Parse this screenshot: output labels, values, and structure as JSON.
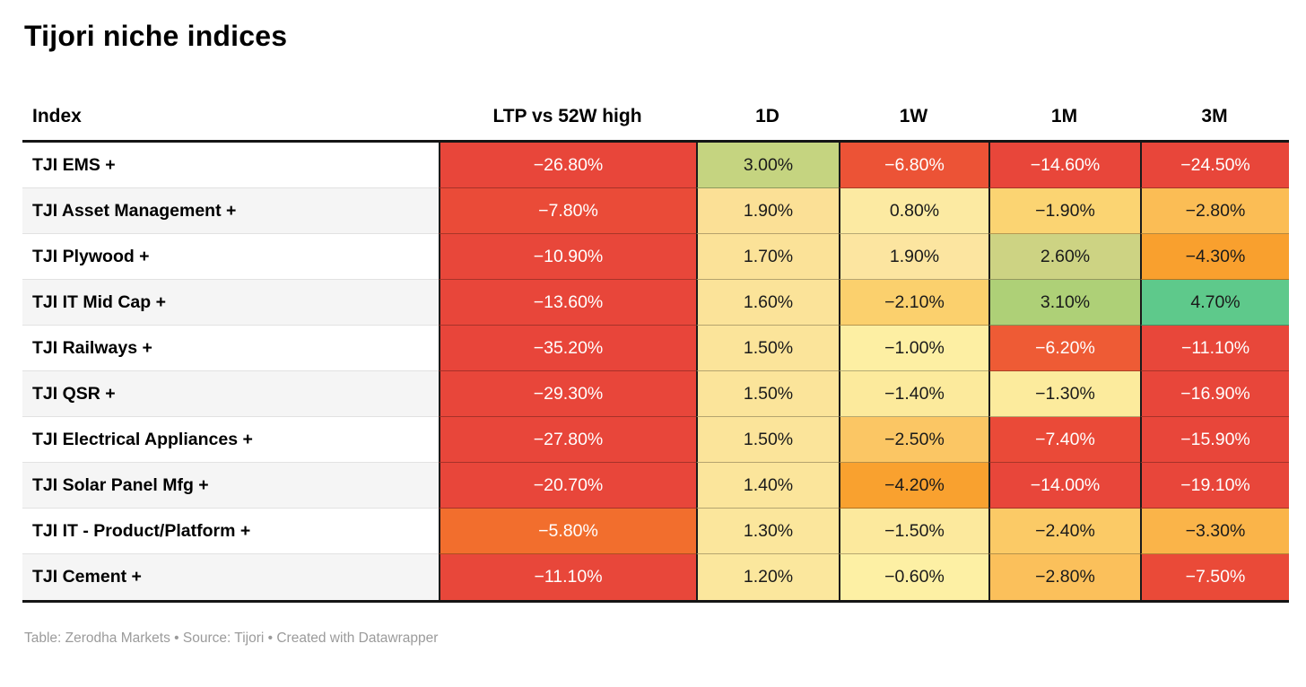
{
  "title": "Tijori niche indices",
  "footer": {
    "text": "Table: Zerodha Markets • Source: Tijori • Created with Datawrapper"
  },
  "colors": {
    "border_dark": "#1a1a1a",
    "row_alt_background": "#f5f5f5",
    "footer_text": "#9b9b9b",
    "negative_deep_red": "#e8463a",
    "positive_green": "#5ec98b"
  },
  "table": {
    "columns": [
      {
        "key": "index",
        "label": "Index"
      },
      {
        "key": "ltp",
        "label": "LTP vs 52W high"
      },
      {
        "key": "d1",
        "label": "1D"
      },
      {
        "key": "w1",
        "label": "1W"
      },
      {
        "key": "m1",
        "label": "1M"
      },
      {
        "key": "m3",
        "label": "3M"
      }
    ],
    "rows": [
      {
        "name": "TJI EMS +",
        "cells": [
          {
            "col": "ltp",
            "text": "−26.80%",
            "bg": "#e8463a",
            "fg": "#ffffff"
          },
          {
            "col": "d1",
            "text": "3.00%",
            "bg": "#c5d480",
            "fg": "#1a1a1a"
          },
          {
            "col": "w1",
            "text": "−6.80%",
            "bg": "#ec5336",
            "fg": "#ffffff"
          },
          {
            "col": "m1",
            "text": "−14.60%",
            "bg": "#e8463a",
            "fg": "#ffffff"
          },
          {
            "col": "m3",
            "text": "−24.50%",
            "bg": "#e8463a",
            "fg": "#ffffff"
          }
        ]
      },
      {
        "name": "TJI Asset Management +",
        "cells": [
          {
            "col": "ltp",
            "text": "−7.80%",
            "bg": "#ea4b38",
            "fg": "#ffffff"
          },
          {
            "col": "d1",
            "text": "1.90%",
            "bg": "#fbe096",
            "fg": "#1a1a1a"
          },
          {
            "col": "w1",
            "text": "0.80%",
            "bg": "#fceaa2",
            "fg": "#1a1a1a"
          },
          {
            "col": "m1",
            "text": "−1.90%",
            "bg": "#fbd472",
            "fg": "#1a1a1a"
          },
          {
            "col": "m3",
            "text": "−2.80%",
            "bg": "#fbbd55",
            "fg": "#1a1a1a"
          }
        ]
      },
      {
        "name": "TJI Plywood +",
        "cells": [
          {
            "col": "ltp",
            "text": "−10.90%",
            "bg": "#e8473a",
            "fg": "#ffffff"
          },
          {
            "col": "d1",
            "text": "1.70%",
            "bg": "#fbe298",
            "fg": "#1a1a1a"
          },
          {
            "col": "w1",
            "text": "1.90%",
            "bg": "#fce5a0",
            "fg": "#1a1a1a"
          },
          {
            "col": "m1",
            "text": "2.60%",
            "bg": "#cdd383",
            "fg": "#1a1a1a"
          },
          {
            "col": "m3",
            "text": "−4.30%",
            "bg": "#f9a02e",
            "fg": "#1a1a1a"
          }
        ]
      },
      {
        "name": "TJI IT Mid Cap +",
        "cells": [
          {
            "col": "ltp",
            "text": "−13.60%",
            "bg": "#e8463a",
            "fg": "#ffffff"
          },
          {
            "col": "d1",
            "text": "1.60%",
            "bg": "#fbe399",
            "fg": "#1a1a1a"
          },
          {
            "col": "w1",
            "text": "−2.10%",
            "bg": "#fbd06d",
            "fg": "#1a1a1a"
          },
          {
            "col": "m1",
            "text": "3.10%",
            "bg": "#aed077",
            "fg": "#1a1a1a"
          },
          {
            "col": "m3",
            "text": "4.70%",
            "bg": "#5ec98b",
            "fg": "#1a1a1a"
          }
        ]
      },
      {
        "name": "TJI Railways +",
        "cells": [
          {
            "col": "ltp",
            "text": "−35.20%",
            "bg": "#e8453a",
            "fg": "#ffffff"
          },
          {
            "col": "d1",
            "text": "1.50%",
            "bg": "#fbe49a",
            "fg": "#1a1a1a"
          },
          {
            "col": "w1",
            "text": "−1.00%",
            "bg": "#fdefa3",
            "fg": "#1a1a1a"
          },
          {
            "col": "m1",
            "text": "−6.20%",
            "bg": "#ee5b35",
            "fg": "#ffffff"
          },
          {
            "col": "m3",
            "text": "−11.10%",
            "bg": "#e8473a",
            "fg": "#ffffff"
          }
        ]
      },
      {
        "name": "TJI QSR +",
        "cells": [
          {
            "col": "ltp",
            "text": "−29.30%",
            "bg": "#e8463a",
            "fg": "#ffffff"
          },
          {
            "col": "d1",
            "text": "1.50%",
            "bg": "#fbe49a",
            "fg": "#1a1a1a"
          },
          {
            "col": "w1",
            "text": "−1.40%",
            "bg": "#fcea9c",
            "fg": "#1a1a1a"
          },
          {
            "col": "m1",
            "text": "−1.30%",
            "bg": "#fceb9d",
            "fg": "#1a1a1a"
          },
          {
            "col": "m3",
            "text": "−16.90%",
            "bg": "#e8463a",
            "fg": "#ffffff"
          }
        ]
      },
      {
        "name": "TJI Electrical Appliances +",
        "cells": [
          {
            "col": "ltp",
            "text": "−27.80%",
            "bg": "#e8463a",
            "fg": "#ffffff"
          },
          {
            "col": "d1",
            "text": "1.50%",
            "bg": "#fbe49a",
            "fg": "#1a1a1a"
          },
          {
            "col": "w1",
            "text": "−2.50%",
            "bg": "#fbc664",
            "fg": "#1a1a1a"
          },
          {
            "col": "m1",
            "text": "−7.40%",
            "bg": "#ea4a38",
            "fg": "#ffffff"
          },
          {
            "col": "m3",
            "text": "−15.90%",
            "bg": "#e8463a",
            "fg": "#ffffff"
          }
        ]
      },
      {
        "name": "TJI Solar Panel Mfg +",
        "cells": [
          {
            "col": "ltp",
            "text": "−20.70%",
            "bg": "#e8463a",
            "fg": "#ffffff"
          },
          {
            "col": "d1",
            "text": "1.40%",
            "bg": "#fbe59b",
            "fg": "#1a1a1a"
          },
          {
            "col": "w1",
            "text": "−4.20%",
            "bg": "#f9a12f",
            "fg": "#1a1a1a"
          },
          {
            "col": "m1",
            "text": "−14.00%",
            "bg": "#e8463a",
            "fg": "#ffffff"
          },
          {
            "col": "m3",
            "text": "−19.10%",
            "bg": "#e8463a",
            "fg": "#ffffff"
          }
        ]
      },
      {
        "name": "TJI IT - Product/Platform +",
        "cells": [
          {
            "col": "ltp",
            "text": "−5.80%",
            "bg": "#f26e2d",
            "fg": "#ffffff"
          },
          {
            "col": "d1",
            "text": "1.30%",
            "bg": "#fbe69c",
            "fg": "#1a1a1a"
          },
          {
            "col": "w1",
            "text": "−1.50%",
            "bg": "#fce99d",
            "fg": "#1a1a1a"
          },
          {
            "col": "m1",
            "text": "−2.40%",
            "bg": "#fbca66",
            "fg": "#1a1a1a"
          },
          {
            "col": "m3",
            "text": "−3.30%",
            "bg": "#fab449",
            "fg": "#1a1a1a"
          }
        ]
      },
      {
        "name": "TJI Cement +",
        "cells": [
          {
            "col": "ltp",
            "text": "−11.10%",
            "bg": "#e8473a",
            "fg": "#ffffff"
          },
          {
            "col": "d1",
            "text": "1.20%",
            "bg": "#fbe79d",
            "fg": "#1a1a1a"
          },
          {
            "col": "w1",
            "text": "−0.60%",
            "bg": "#fdf0a4",
            "fg": "#1a1a1a"
          },
          {
            "col": "m1",
            "text": "−2.80%",
            "bg": "#fbc05b",
            "fg": "#1a1a1a"
          },
          {
            "col": "m3",
            "text": "−7.50%",
            "bg": "#ea4a38",
            "fg": "#ffffff"
          }
        ]
      }
    ]
  },
  "chart_data": {
    "type": "table",
    "title": "Tijori niche indices",
    "columns": [
      "Index",
      "LTP vs 52W high",
      "1D",
      "1W",
      "1M",
      "3M"
    ],
    "units": "percent",
    "rows": [
      [
        "TJI EMS +",
        -26.8,
        3.0,
        -6.8,
        -14.6,
        -24.5
      ],
      [
        "TJI Asset Management +",
        -7.8,
        1.9,
        0.8,
        -1.9,
        -2.8
      ],
      [
        "TJI Plywood +",
        -10.9,
        1.7,
        1.9,
        2.6,
        -4.3
      ],
      [
        "TJI IT Mid Cap +",
        -13.6,
        1.6,
        -2.1,
        3.1,
        4.7
      ],
      [
        "TJI Railways +",
        -35.2,
        1.5,
        -1.0,
        -6.2,
        -11.1
      ],
      [
        "TJI QSR +",
        -29.3,
        1.5,
        -1.4,
        -1.3,
        -16.9
      ],
      [
        "TJI Electrical Appliances +",
        -27.8,
        1.5,
        -2.5,
        -7.4,
        -15.9
      ],
      [
        "TJI Solar Panel Mfg +",
        -20.7,
        1.4,
        -4.2,
        -14.0,
        -19.1
      ],
      [
        "TJI IT - Product/Platform +",
        -5.8,
        1.3,
        -1.5,
        -2.4,
        -3.3
      ],
      [
        "TJI Cement +",
        -11.1,
        1.2,
        -0.6,
        -2.8,
        -7.5
      ]
    ],
    "footer": "Table: Zerodha Markets • Source: Tijori • Created with Datawrapper",
    "color_scale": "red-yellow-green heatmap on value cells"
  }
}
